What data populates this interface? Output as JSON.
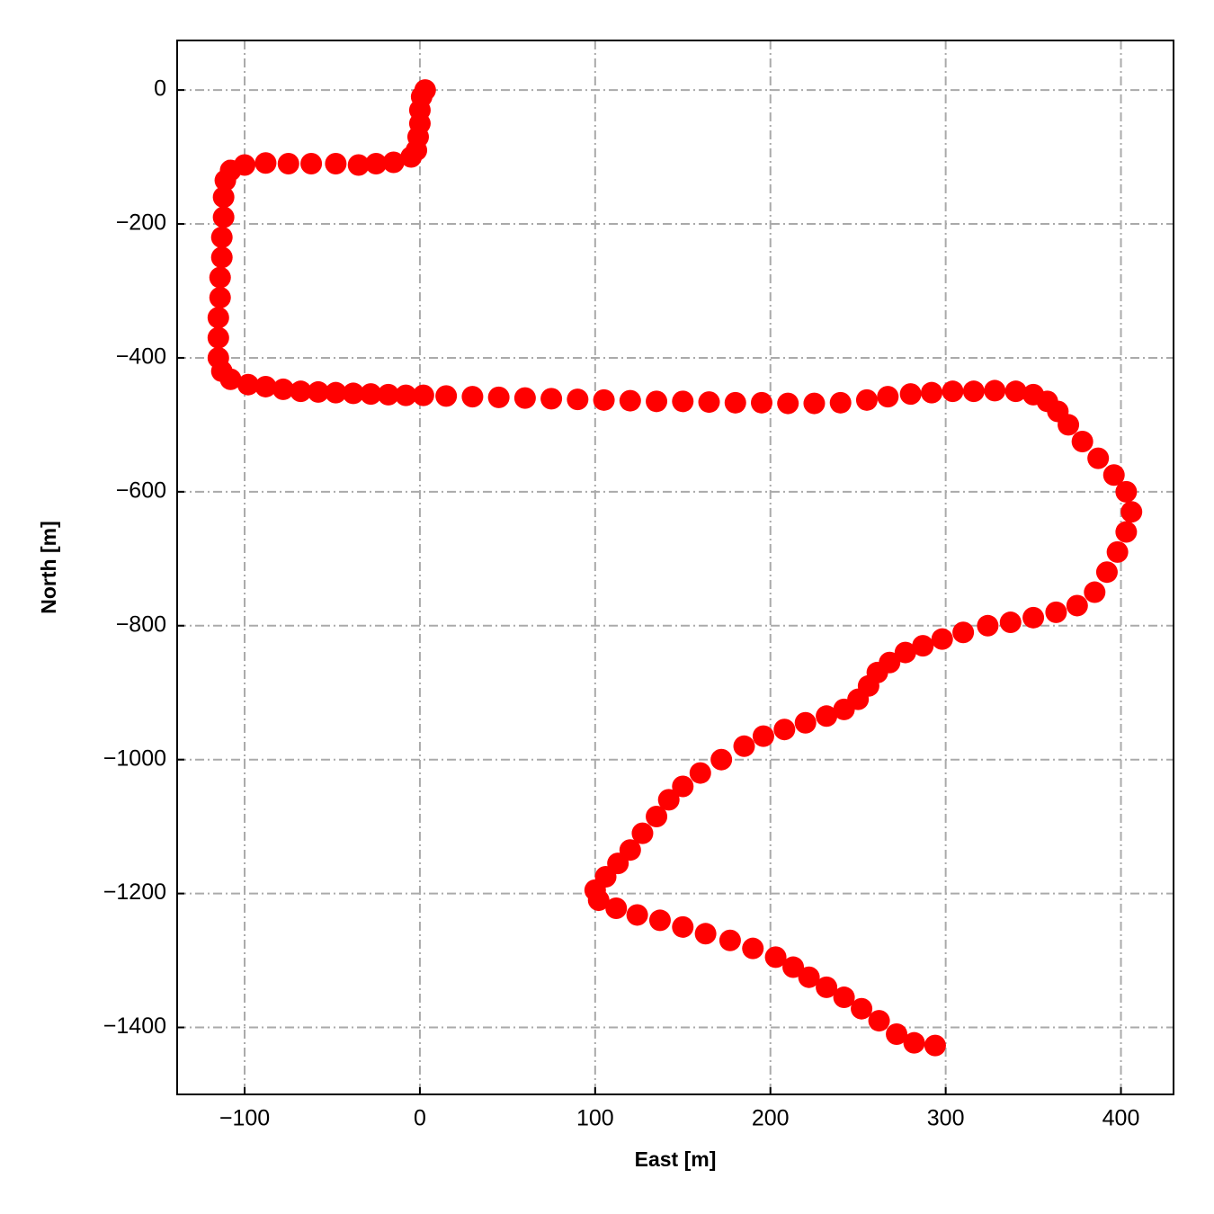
{
  "chart_data": {
    "type": "scatter",
    "xlabel": "East [m]",
    "ylabel": "North [m]",
    "xlim": [
      -138.5,
      430
    ],
    "ylim": [
      -1500,
      74
    ],
    "xticks": [
      {
        "value": -100,
        "label": "−100"
      },
      0,
      100,
      200,
      300,
      400
    ],
    "yticks": [
      0,
      {
        "value": -200,
        "label": "−200"
      },
      {
        "value": -400,
        "label": "−400"
      },
      {
        "value": -600,
        "label": "−600"
      },
      {
        "value": -800,
        "label": "−800"
      },
      {
        "value": -1000,
        "label": "−1000"
      },
      {
        "value": -1200,
        "label": "−1200"
      },
      {
        "value": -1400,
        "label": "−1400"
      }
    ],
    "grid": true,
    "series": [
      {
        "color": "#ff0000",
        "x": [
          3,
          1,
          0,
          0,
          -1,
          -2,
          -5,
          -15,
          -25,
          -35,
          -48,
          -62,
          -75,
          -88,
          -100,
          -108,
          -111,
          -112,
          -112,
          -113,
          -113,
          -114,
          -114,
          -115,
          -115,
          -115,
          -113,
          -108,
          -98,
          -88,
          -78,
          -68,
          -58,
          -48,
          -38,
          -28,
          -18,
          -8,
          2,
          15,
          30,
          45,
          60,
          75,
          90,
          105,
          120,
          135,
          150,
          165,
          180,
          195,
          210,
          225,
          240,
          255,
          267,
          280,
          292,
          304,
          316,
          328,
          340,
          350,
          358,
          364,
          370,
          378,
          387,
          396,
          403,
          406,
          403,
          398,
          392,
          385,
          375,
          363,
          350,
          337,
          324,
          310,
          298,
          287,
          277,
          268,
          261,
          256,
          250,
          242,
          232,
          220,
          208,
          196,
          185,
          172,
          160,
          150,
          142,
          135,
          127,
          120,
          113,
          106,
          100,
          102,
          112,
          124,
          137,
          150,
          163,
          177,
          190,
          203,
          213,
          222,
          232,
          242,
          252,
          262,
          272,
          282,
          294
        ],
        "values": [
          0,
          -10,
          -30,
          -50,
          -70,
          -90,
          -100,
          -108,
          -110,
          -112,
          -110,
          -110,
          -110,
          -109,
          -112,
          -120,
          -135,
          -160,
          -190,
          -220,
          -250,
          -280,
          -310,
          -340,
          -370,
          -400,
          -420,
          -432,
          -440,
          -443,
          -447,
          -450,
          -451,
          -452,
          -453,
          -454,
          -455,
          -456,
          -456,
          -457,
          -458,
          -459,
          -460,
          -461,
          -462,
          -463,
          -464,
          -465,
          -465,
          -466,
          -467,
          -467,
          -468,
          -468,
          -467,
          -463,
          -458,
          -454,
          -452,
          -450,
          -450,
          -449,
          -450,
          -455,
          -465,
          -480,
          -500,
          -525,
          -550,
          -575,
          -600,
          -630,
          -660,
          -690,
          -720,
          -750,
          -770,
          -780,
          -788,
          -795,
          -800,
          -810,
          -820,
          -830,
          -840,
          -855,
          -870,
          -890,
          -910,
          -925,
          -935,
          -945,
          -955,
          -965,
          -980,
          -1000,
          -1020,
          -1040,
          -1060,
          -1085,
          -1110,
          -1135,
          -1155,
          -1175,
          -1195,
          -1210,
          -1222,
          -1232,
          -1240,
          -1250,
          -1260,
          -1270,
          -1282,
          -1295,
          -1310,
          -1325,
          -1340,
          -1355,
          -1372,
          -1390,
          -1410,
          -1423,
          -1427
        ]
      }
    ]
  }
}
